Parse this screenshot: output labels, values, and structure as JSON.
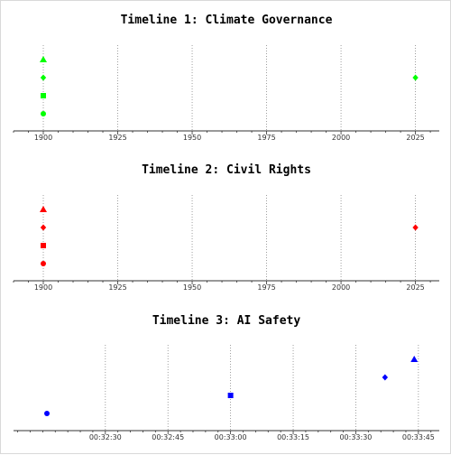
{
  "chart_data": [
    {
      "type": "scatter",
      "title": "Timeline 1: Climate Governance",
      "x_axis": {
        "kind": "year",
        "min": 1890,
        "max": 2033,
        "ticks": [
          1900,
          1925,
          1950,
          1975,
          2000,
          2025
        ]
      },
      "points": [
        {
          "x": 1900,
          "row": 1,
          "marker": "circle"
        },
        {
          "x": 1900,
          "row": 2,
          "marker": "square"
        },
        {
          "x": 1900,
          "row": 3,
          "marker": "diamond"
        },
        {
          "x": 1900,
          "row": 4,
          "marker": "triangle"
        },
        {
          "x": 2025,
          "row": 3,
          "marker": "diamond"
        }
      ],
      "color": "#00ff00",
      "grid": "vertical dotted"
    },
    {
      "type": "scatter",
      "title": "Timeline 2: Civil Rights",
      "x_axis": {
        "kind": "year",
        "min": 1890,
        "max": 2033,
        "ticks": [
          1900,
          1925,
          1950,
          1975,
          2000,
          2025
        ]
      },
      "points": [
        {
          "x": 1900,
          "row": 1,
          "marker": "circle"
        },
        {
          "x": 1900,
          "row": 2,
          "marker": "square"
        },
        {
          "x": 1900,
          "row": 3,
          "marker": "diamond"
        },
        {
          "x": 1900,
          "row": 4,
          "marker": "triangle"
        },
        {
          "x": 2025,
          "row": 3,
          "marker": "diamond"
        }
      ],
      "color": "#ff0000",
      "grid": "vertical dotted"
    },
    {
      "type": "scatter",
      "title": "Timeline 3: AI Safety",
      "x_axis": {
        "kind": "time",
        "min": "00:32:08",
        "max": "00:33:50",
        "ticks": [
          "00:32:30",
          "00:32:45",
          "00:33:00",
          "00:33:15",
          "00:33:30",
          "00:33:45"
        ]
      },
      "points": [
        {
          "x": "00:32:16",
          "row": 1,
          "marker": "circle"
        },
        {
          "x": "00:33:00",
          "row": 2,
          "marker": "square"
        },
        {
          "x": "00:33:37",
          "row": 3,
          "marker": "diamond"
        },
        {
          "x": "00:33:44",
          "row": 4,
          "marker": "triangle"
        }
      ],
      "color": "#0000ff",
      "grid": "vertical dotted"
    }
  ]
}
